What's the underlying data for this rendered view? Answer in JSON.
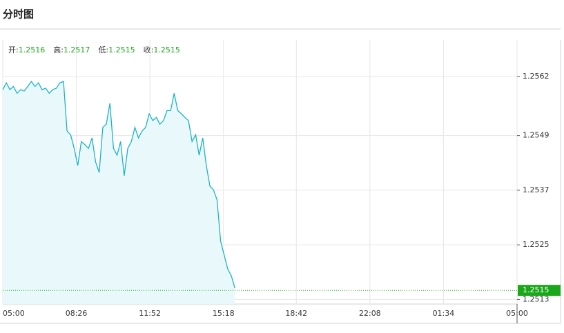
{
  "header": {
    "title": "分时图"
  },
  "chart_data": {
    "type": "line",
    "stats": [
      {
        "label": "开:",
        "value": 1.2516
      },
      {
        "label": "高:",
        "value": 1.2517
      },
      {
        "label": "低:",
        "value": 1.2515
      },
      {
        "label": "收:",
        "value": 1.2515
      }
    ],
    "x": [
      "05:00",
      "05:10",
      "05:20",
      "05:30",
      "05:40",
      "05:50",
      "06:00",
      "06:10",
      "06:20",
      "06:30",
      "06:40",
      "06:50",
      "07:00",
      "07:10",
      "07:20",
      "07:30",
      "07:40",
      "07:50",
      "08:00",
      "08:10",
      "08:20",
      "08:30",
      "08:40",
      "08:50",
      "09:00",
      "09:10",
      "09:20",
      "09:30",
      "09:40",
      "09:50",
      "10:00",
      "10:10",
      "10:20",
      "10:30",
      "10:40",
      "10:50",
      "11:00",
      "11:10",
      "11:20",
      "11:30",
      "11:40",
      "11:50",
      "12:00",
      "12:10",
      "12:20",
      "12:30",
      "12:40",
      "12:50",
      "13:00",
      "13:10",
      "13:20",
      "13:30",
      "13:40",
      "13:50",
      "14:00",
      "14:10",
      "14:20",
      "14:30",
      "14:40",
      "14:50",
      "15:00",
      "15:10",
      "15:20",
      "15:30",
      "15:40",
      "15:50"
    ],
    "values": [
      1.25591,
      1.25606,
      1.25591,
      1.25598,
      1.25583,
      1.25591,
      1.25588,
      1.25598,
      1.25609,
      1.25598,
      1.25606,
      1.25591,
      1.25594,
      1.25583,
      1.25591,
      1.25594,
      1.25606,
      1.25609,
      1.255,
      1.25492,
      1.25462,
      1.25424,
      1.25477,
      1.2547,
      1.25462,
      1.25485,
      1.25432,
      1.25409,
      1.25508,
      1.25515,
      1.25561,
      1.25462,
      1.25447,
      1.25477,
      1.25402,
      1.25462,
      1.25477,
      1.25508,
      1.25485,
      1.255,
      1.25508,
      1.25538,
      1.25523,
      1.2553,
      1.25515,
      1.25523,
      1.25545,
      1.25545,
      1.25583,
      1.25545,
      1.25538,
      1.2553,
      1.25523,
      1.25477,
      1.25492,
      1.25447,
      1.25485,
      1.25424,
      1.25379,
      1.25371,
      1.25349,
      1.25258,
      1.25227,
      1.25197,
      1.25182,
      1.25155
    ],
    "color": "#1ab3c9",
    "xticks": [
      "05:00",
      "08:26",
      "11:52",
      "15:18",
      "18:42",
      "22:08",
      "01:34",
      "05:00"
    ],
    "ylim": [
      1.2512,
      1.257
    ],
    "yticks": [
      1.2513,
      1.2525,
      1.2537,
      1.2549,
      1.2562
    ],
    "last": 1.2515,
    "last_color": "#1aa81a",
    "grid": true
  }
}
